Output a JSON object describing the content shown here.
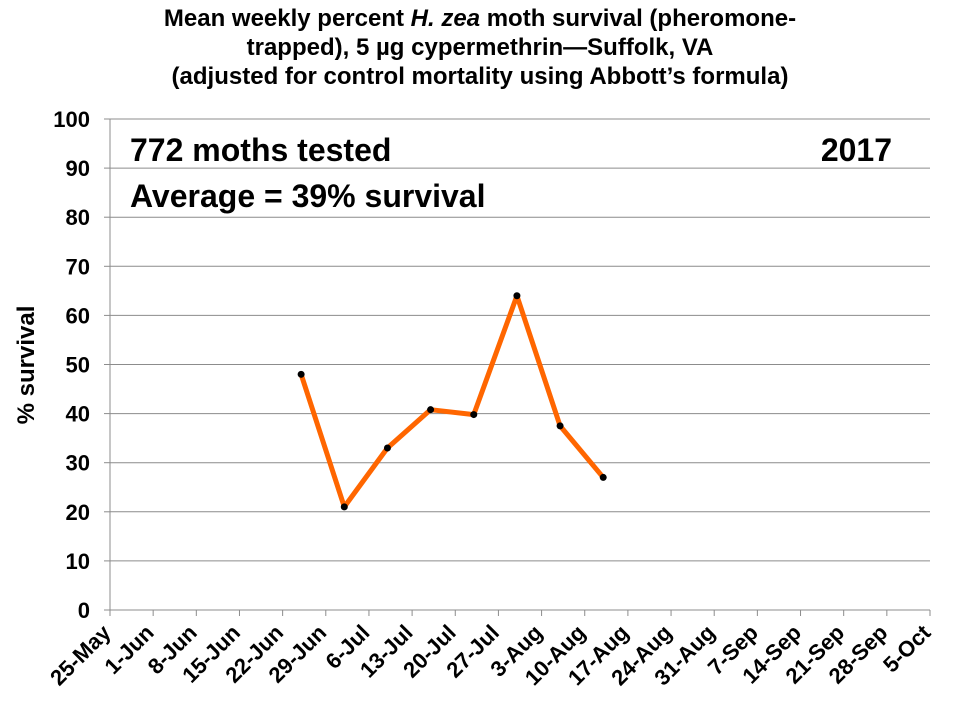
{
  "chart_data": {
    "type": "line",
    "title_lines": [
      {
        "before": "Mean weekly percent ",
        "italic": "H. zea",
        "after": " moth survival (pheromone-"
      },
      {
        "before": "trapped), 5 µg cypermethrin—Suffolk,  VA",
        "italic": "",
        "after": ""
      },
      {
        "before": "(adjusted for control mortality using Abbott’s formula)",
        "italic": "",
        "after": ""
      }
    ],
    "ylabel": "% survival",
    "xlabel": "",
    "ylim": [
      0,
      100
    ],
    "yticks": [
      0,
      10,
      20,
      30,
      40,
      50,
      60,
      70,
      80,
      90,
      100
    ],
    "categories": [
      "25-May",
      "1-Jun",
      "8-Jun",
      "15-Jun",
      "22-Jun",
      "29-Jun",
      "6-Jul",
      "13-Jul",
      "20-Jul",
      "27-Jul",
      "3-Aug",
      "10-Aug",
      "17-Aug",
      "24-Aug",
      "31-Aug",
      "7-Sep",
      "14-Sep",
      "21-Sep",
      "28-Sep",
      "5-Oct"
    ],
    "series": [
      {
        "color": "#FF6600",
        "marker_color": "#000000",
        "points": [
          {
            "x": "25-Jun",
            "y": 48
          },
          {
            "x": "2-Jul",
            "y": 21
          },
          {
            "x": "9-Jul",
            "y": 33
          },
          {
            "x": "16-Jul",
            "y": 40.8
          },
          {
            "x": "23-Jul",
            "y": 39.8
          },
          {
            "x": "30-Jul",
            "y": 64
          },
          {
            "x": "6-Aug",
            "y": 37.5
          },
          {
            "x": "13-Aug",
            "y": 27
          }
        ]
      }
    ],
    "annotations": {
      "tested": "772 moths tested",
      "year": "2017",
      "average": "Average = 39% survival"
    },
    "grid": true
  }
}
